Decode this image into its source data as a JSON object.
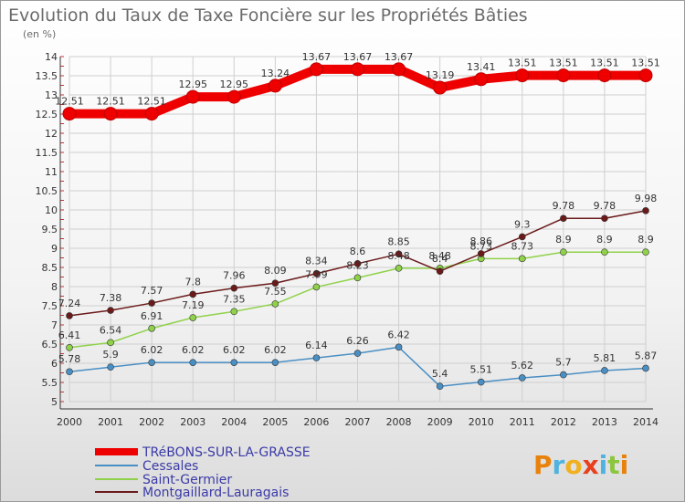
{
  "chart_data": {
    "type": "line",
    "title": "Evolution du Taux de Taxe Foncière sur les Propriétés Bâties",
    "subtitle": "(en %)",
    "xlabel": "",
    "ylabel": "",
    "x": [
      2000,
      2001,
      2002,
      2003,
      2004,
      2005,
      2006,
      2007,
      2008,
      2009,
      2010,
      2011,
      2012,
      2013,
      2014
    ],
    "ylim": [
      5,
      14
    ],
    "yticks": [
      5,
      5.5,
      6,
      6.5,
      7,
      7.5,
      8,
      8.5,
      9,
      9.5,
      10,
      10.5,
      11,
      11.5,
      12,
      12.5,
      13,
      13.5,
      14
    ],
    "series": [
      {
        "name": "TRéBONS-SUR-LA-GRASSE",
        "color": "#ee0000",
        "values": [
          12.51,
          12.51,
          12.51,
          12.95,
          12.95,
          13.24,
          13.67,
          13.67,
          13.67,
          13.19,
          13.41,
          13.51,
          13.51,
          13.51,
          13.51
        ],
        "labels": [
          "12.51",
          "12.51",
          "12.51",
          "12.95",
          "12.95",
          "13.24",
          "13.67",
          "13.67",
          "13.67",
          "13.19",
          "13.41",
          "13.51",
          "13.51",
          "13.51",
          "13.51"
        ]
      },
      {
        "name": "Cessales",
        "color": "#4a8fc4",
        "values": [
          5.78,
          5.9,
          6.02,
          6.02,
          6.02,
          6.02,
          6.14,
          6.26,
          6.42,
          5.4,
          5.51,
          5.62,
          5.7,
          5.81,
          5.87
        ],
        "labels": [
          "5.78",
          "5.9",
          "6.02",
          "6.02",
          "6.02",
          "6.02",
          "6.14",
          "6.26",
          "6.42",
          "5.4",
          "5.51",
          "5.62",
          "5.7",
          "5.81",
          "5.87"
        ]
      },
      {
        "name": "Saint-Germier",
        "color": "#8fd24a",
        "values": [
          6.41,
          6.54,
          6.91,
          7.19,
          7.35,
          7.55,
          7.99,
          8.23,
          8.48,
          8.48,
          8.73,
          8.73,
          8.9,
          8.9,
          8.9
        ],
        "labels": [
          "6.41",
          "6.54",
          "6.91",
          "7.19",
          "7.35",
          "7.55",
          "7.99",
          "8.23",
          "8.48",
          "8.48",
          "8.73",
          "8.73",
          "8.9",
          "8.9",
          "8.9"
        ]
      },
      {
        "name": "Montgaillard-Lauragais",
        "color": "#6b1a1a",
        "values": [
          7.24,
          7.38,
          7.57,
          7.8,
          7.96,
          8.09,
          8.34,
          8.6,
          8.85,
          8.4,
          8.86,
          9.3,
          9.78,
          9.78,
          9.98
        ],
        "labels": [
          "7.24",
          "7.38",
          "7.57",
          "7.8",
          "7.96",
          "8.09",
          "8.34",
          "8.6",
          "8.85",
          "8.4",
          "8.86",
          "9.3",
          "9.78",
          "9.78",
          "9.98"
        ]
      }
    ]
  },
  "branding": {
    "logo_text": "Proxiti"
  }
}
